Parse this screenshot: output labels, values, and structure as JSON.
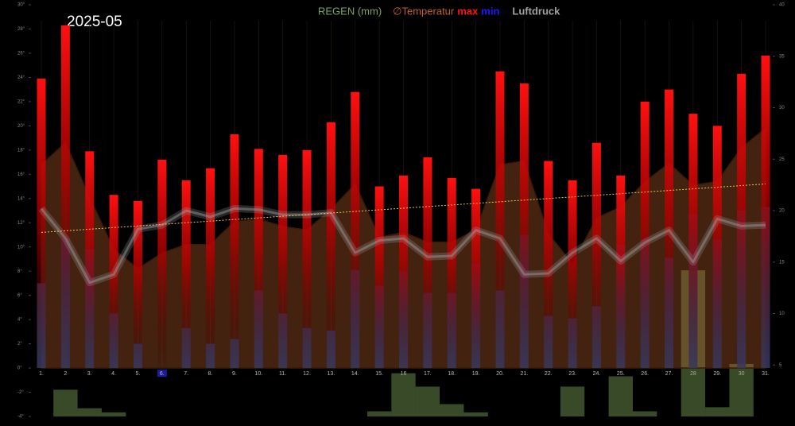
{
  "chart_data": {
    "type": "weather",
    "title": "2025-05",
    "categories": [
      "1.",
      "2",
      "3.",
      "4.",
      "5.",
      "6.",
      "7.",
      "8.",
      "9.",
      "10.",
      "11.",
      "12.",
      "13.",
      "14.",
      "15.",
      "16",
      "17.",
      "18.",
      "19.",
      "20.",
      "21.",
      "22.",
      "23.",
      "24.",
      "25.",
      "26.",
      "27.",
      "28",
      "29.",
      "30",
      "31."
    ],
    "highlight_index": 5,
    "ylim": [
      -4,
      30
    ],
    "yticks": [
      {
        "value": 30,
        "label": "30°"
      },
      {
        "value": 28,
        "label": "28°"
      },
      {
        "value": 26,
        "label": "26°"
      },
      {
        "value": 24,
        "label": "24°"
      },
      {
        "value": 22,
        "label": "22°"
      },
      {
        "value": 20,
        "label": "20°"
      },
      {
        "value": 18,
        "label": "18°"
      },
      {
        "value": 16,
        "label": "16°"
      },
      {
        "value": 14,
        "label": "14°"
      },
      {
        "value": 12,
        "label": "12°"
      },
      {
        "value": 10,
        "label": "10°"
      },
      {
        "value": 8,
        "label": "8°"
      },
      {
        "value": 6,
        "label": "6°"
      },
      {
        "value": 4,
        "label": "4°"
      },
      {
        "value": 2,
        "label": "2°"
      },
      {
        "value": 0,
        "label": "0°"
      },
      {
        "value": -2,
        "label": "-2°"
      },
      {
        "value": -4,
        "label": "-4°"
      }
    ],
    "y2lim": [
      0,
      40
    ],
    "y2ticks": [
      5,
      10,
      15,
      20,
      25,
      30,
      35,
      40
    ],
    "series": [
      {
        "name": "REGEN (mm)",
        "color": "#7fa35a",
        "kind": "rain",
        "axis": "y2",
        "values": [
          0,
          2.6,
          0.8,
          0.4,
          0,
          0,
          0,
          0,
          0,
          0,
          0,
          0,
          0,
          0,
          0.5,
          4.2,
          2.9,
          1.2,
          0.4,
          0,
          0,
          0,
          2.9,
          0,
          3.9,
          0.5,
          0,
          14.2,
          0.9,
          5.1,
          0
        ]
      },
      {
        "name": "∅Temperatur",
        "color": "#c0602c",
        "kind": "area",
        "values": [
          16.8,
          18.6,
          14.1,
          9.8,
          8.2,
          9.5,
          10.2,
          10.2,
          12.1,
          12.3,
          11.7,
          11.4,
          13.1,
          15.2,
          10.8,
          11.2,
          10.4,
          10.4,
          11.4,
          16.8,
          17.1,
          11.1,
          8.6,
          12.4,
          13.3,
          15.4,
          16.9,
          15.1,
          15.4,
          18.2,
          19.8
        ]
      },
      {
        "name": "max",
        "color": "#ff1010",
        "kind": "max",
        "values": [
          23.9,
          28.3,
          17.9,
          14.3,
          13.8,
          17.2,
          15.5,
          16.5,
          19.3,
          18.1,
          17.6,
          18.0,
          20.3,
          22.8,
          15.0,
          15.9,
          17.4,
          15.7,
          14.8,
          24.5,
          23.5,
          17.1,
          15.5,
          18.6,
          15.9,
          22.0,
          23.0,
          21.0,
          20.0,
          24.3,
          25.8
        ]
      },
      {
        "name": "min",
        "color": "#1a1aff",
        "kind": "min",
        "values": [
          7.0,
          10.7,
          9.8,
          4.5,
          2.0,
          0,
          3.3,
          2.0,
          2.4,
          6.4,
          4.5,
          3.3,
          3.1,
          8.1,
          6.8,
          8.0,
          6.2,
          6.2,
          8.6,
          6.4,
          11.0,
          4.3,
          4.1,
          5.1,
          10.2,
          10.6,
          9.1,
          12.7,
          10.6,
          13.0,
          13.3
        ]
      },
      {
        "name": "Luftdruck",
        "color": "#a0a0a0",
        "kind": "pressure",
        "axis": "y2",
        "values": [
          20.2,
          17.3,
          13.0,
          13.8,
          18.2,
          18.6,
          20.0,
          19.4,
          20.2,
          20.1,
          19.6,
          19.6,
          19.8,
          15.9,
          17.1,
          17.3,
          15.5,
          15.6,
          18.1,
          17.3,
          13.8,
          13.9,
          15.9,
          17.3,
          15.1,
          16.9,
          18.1,
          15.0,
          19.2,
          18.5,
          18.6
        ]
      }
    ],
    "trend": [
      11.2,
      15.2
    ],
    "trend_color": "#e8c060"
  }
}
